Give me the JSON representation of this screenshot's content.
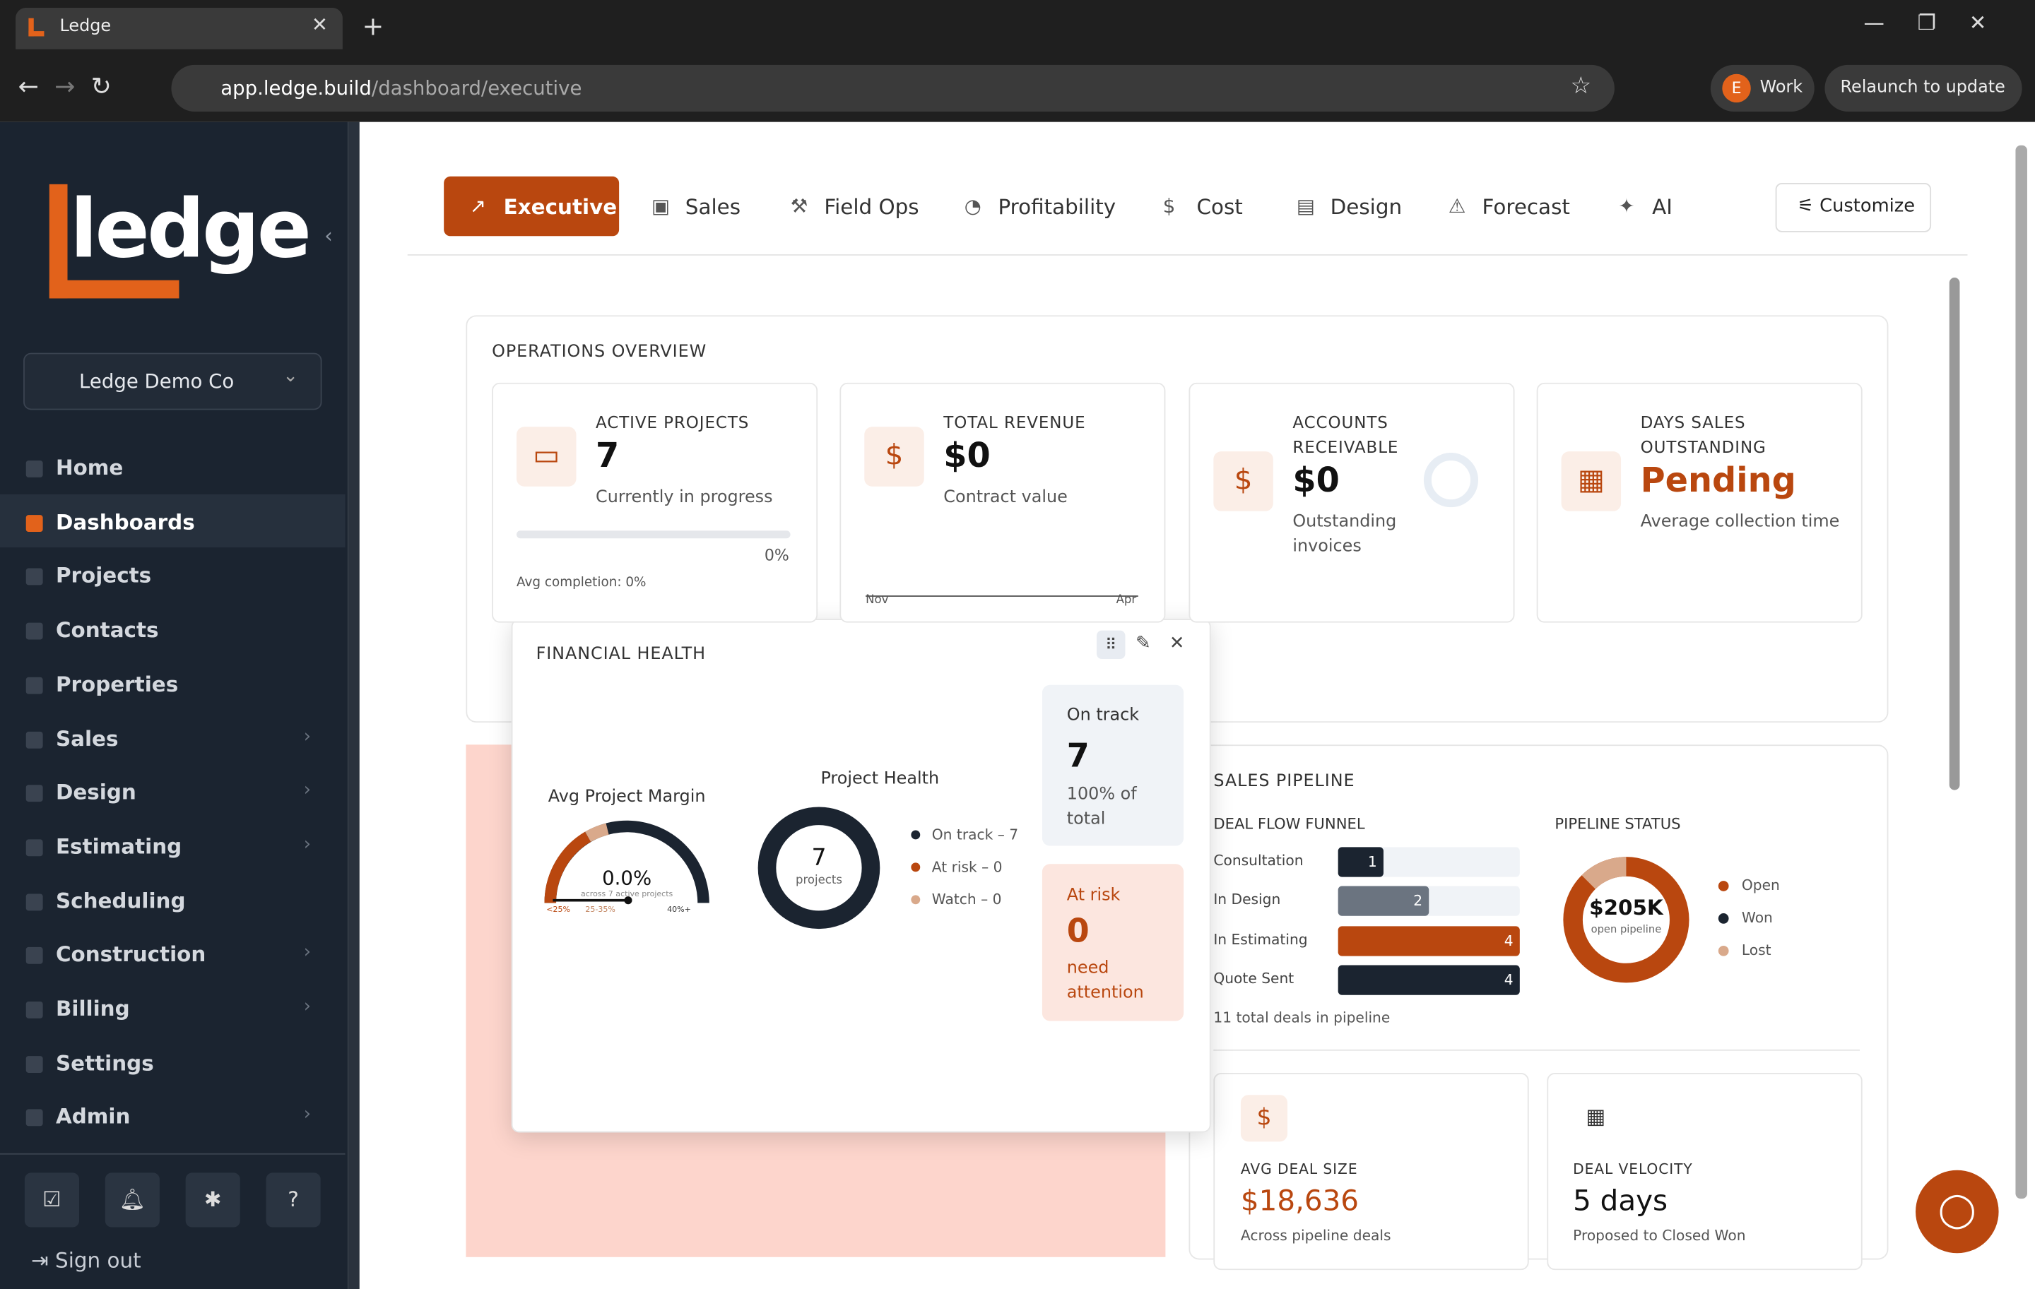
{
  "browser": {
    "tab_title": "Ledge",
    "url_host": "app.ledge.build",
    "url_path": "/dashboard/executive",
    "profile_initial": "E",
    "profile": "Work",
    "relaunch": "Relaunch to update"
  },
  "sidebar": {
    "logo": "ledge",
    "company": "Ledge Demo Co",
    "nav": [
      "Home",
      "Dashboards",
      "Projects",
      "Contacts",
      "Properties",
      "Sales",
      "Design",
      "Estimating",
      "Scheduling",
      "Construction",
      "Billing",
      "Settings",
      "Admin"
    ],
    "sign_out": "Sign out"
  },
  "tabs": [
    "Executive",
    "Sales",
    "Field Ops",
    "Profitability",
    "Cost",
    "Design",
    "Forecast",
    "AI"
  ],
  "customize": "Customize",
  "operations": {
    "title": "OPERATIONS OVERVIEW",
    "cards": [
      {
        "label": "ACTIVE PROJECTS",
        "value": "7",
        "sub": "Currently in progress",
        "progress_label": "0%",
        "note": "Avg completion: 0%"
      },
      {
        "label": "TOTAL REVENUE",
        "value": "$0",
        "sub": "Contract value",
        "axis_start": "Nov",
        "axis_end": "Apr"
      },
      {
        "label": "ACCOUNTS RECEIVABLE",
        "value": "$0",
        "sub": "Outstanding invoices"
      },
      {
        "label": "DAYS SALES OUTSTANDING",
        "value": "Pending",
        "sub": "Average collection time"
      }
    ]
  },
  "financial_health": {
    "title": "FINANCIAL HEALTH",
    "margin_title": "Avg Project Margin",
    "margin_value": "0.0%",
    "margin_note": "across 7 active projects",
    "gauge_labels": [
      "<25%",
      "25-35%",
      "40%+"
    ],
    "health_title": "Project Health",
    "health_total": "7",
    "health_unit": "projects",
    "legend": [
      "On track – 7",
      "At risk – 0",
      "Watch – 0"
    ],
    "on_track": {
      "label": "On track",
      "value": "7",
      "sub": "100% of total"
    },
    "at_risk": {
      "label": "At risk",
      "value": "0",
      "sub": "need attention"
    }
  },
  "sales_pipeline": {
    "title": "SALES PIPELINE",
    "funnel_title": "DEAL FLOW FUNNEL",
    "funnel": [
      {
        "stage": "Consultation",
        "count": 1
      },
      {
        "stage": "In Design",
        "count": 2
      },
      {
        "stage": "In Estimating",
        "count": 4
      },
      {
        "stage": "Quote Sent",
        "count": 4
      }
    ],
    "funnel_note": "11 total deals in pipeline",
    "status_title": "PIPELINE STATUS",
    "status_value": "$205K",
    "status_note": "open pipeline",
    "status_legend": [
      "Open",
      "Won",
      "Lost"
    ],
    "avg_deal": {
      "label": "AVG DEAL SIZE",
      "value": "$18,636",
      "sub": "Across pipeline deals"
    },
    "velocity": {
      "label": "DEAL VELOCITY",
      "value": "5 days",
      "sub": "Proposed to Closed Won"
    }
  }
}
